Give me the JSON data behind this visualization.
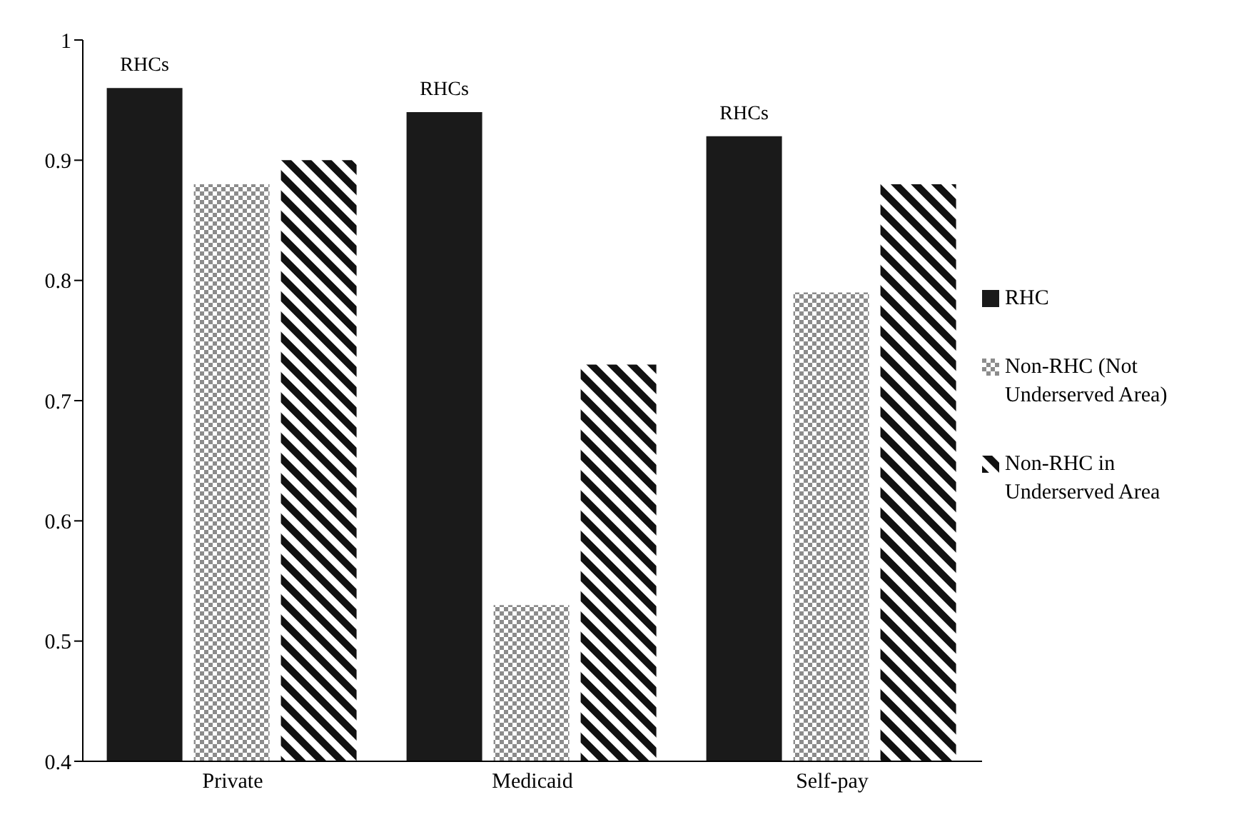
{
  "chart_data": {
    "type": "bar",
    "categories": [
      "Private",
      "Medicaid",
      "Self-pay"
    ],
    "series": [
      {
        "name": "RHC",
        "color": "#1a1a1a",
        "values": [
          0.96,
          0.94,
          0.92
        ]
      },
      {
        "name": "Non-RHC (Not Underserved Area)",
        "color": "#8c8c8c",
        "values": [
          0.88,
          0.53,
          0.79
        ]
      },
      {
        "name": "Non-RHC in Underserved Area",
        "color": "#111111",
        "values": [
          0.9,
          0.73,
          0.88
        ]
      }
    ],
    "ylim": [
      0.4,
      1
    ],
    "yticks": [
      0.4,
      0.5,
      0.6,
      0.7,
      0.8,
      0.9,
      1
    ],
    "grid": false,
    "legend": "right",
    "annotations": [
      "RHCs",
      "RHCs",
      "RHCs"
    ]
  }
}
